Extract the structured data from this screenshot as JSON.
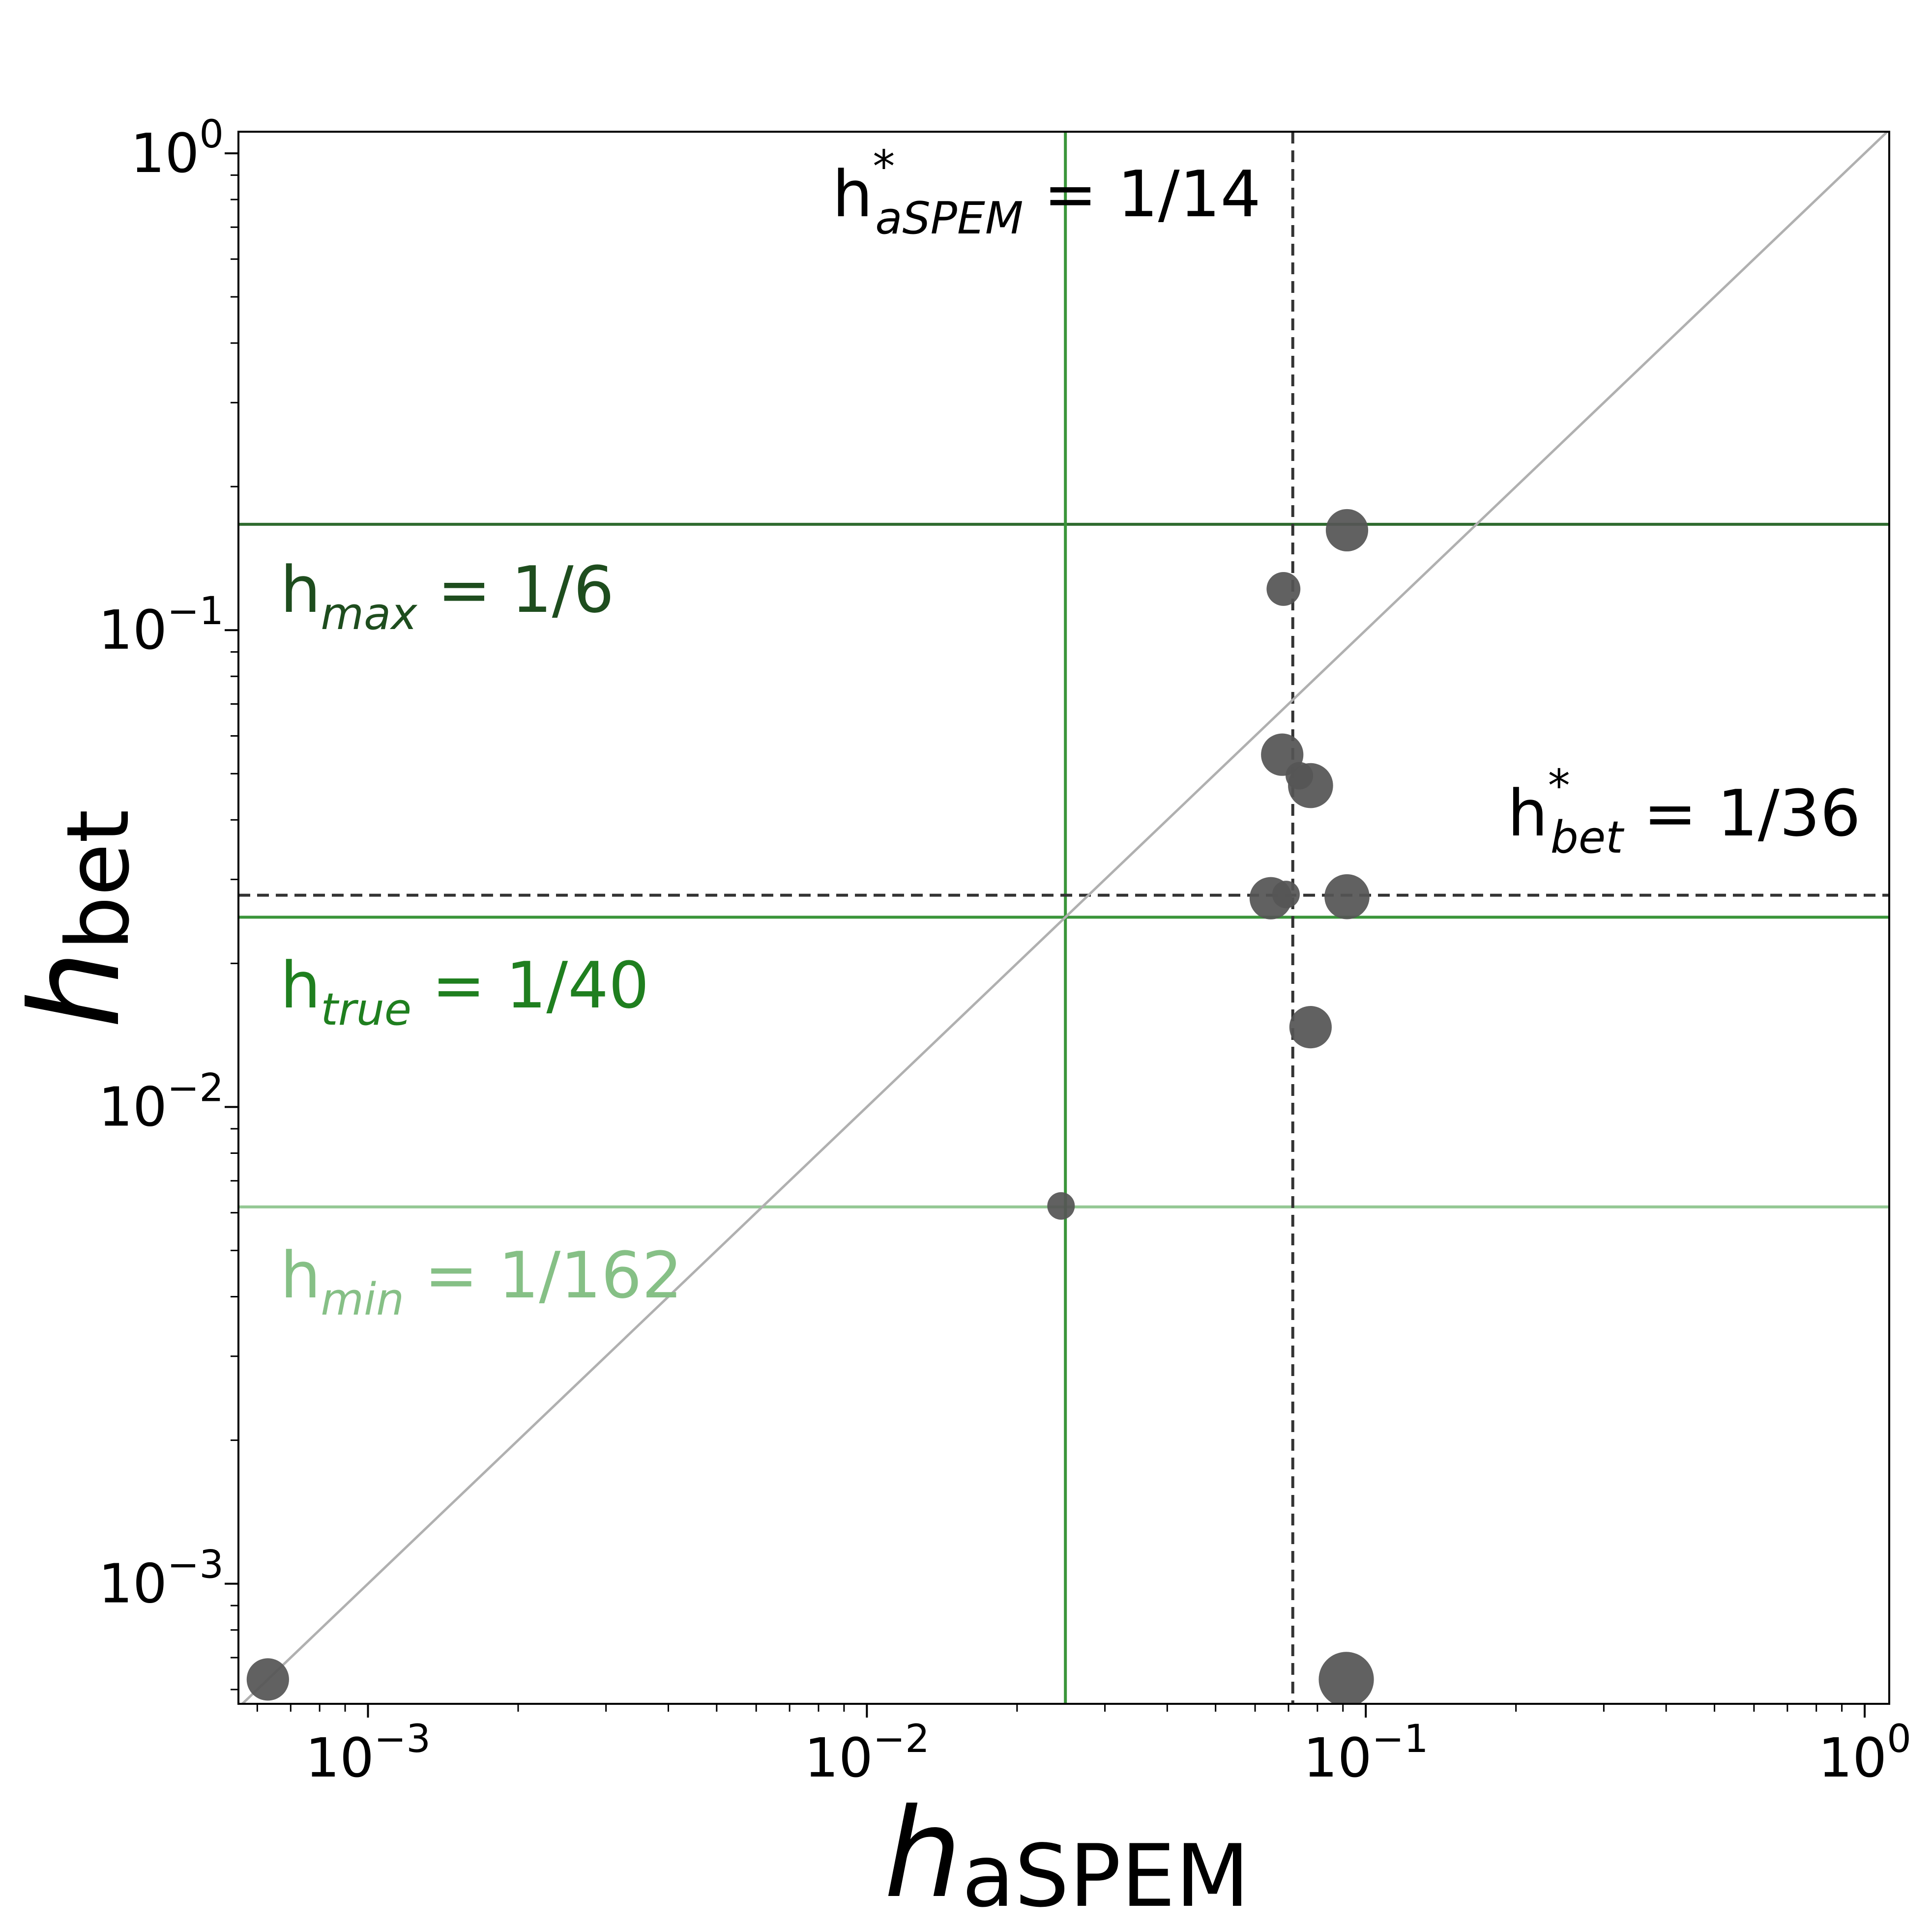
{
  "chart_data": {
    "type": "scatter",
    "xlabel": {
      "main": "h",
      "sub": "aSPEM"
    },
    "ylabel": {
      "main": "h",
      "sub": "bet"
    },
    "x_scale": "log",
    "y_scale": "log",
    "xlim": [
      0.00055,
      1.12
    ],
    "ylim": [
      0.00056,
      1.11
    ],
    "x_ticks": [
      {
        "value": 0.001,
        "base": "10",
        "exp": "−3"
      },
      {
        "value": 0.01,
        "base": "10",
        "exp": "−2"
      },
      {
        "value": 0.1,
        "base": "10",
        "exp": "−1"
      },
      {
        "value": 1,
        "base": "10",
        "exp": "0"
      }
    ],
    "y_ticks": [
      {
        "value": 0.001,
        "base": "10",
        "exp": "−3"
      },
      {
        "value": 0.01,
        "base": "10",
        "exp": "−2"
      },
      {
        "value": 0.1,
        "base": "10",
        "exp": "−1"
      },
      {
        "value": 1,
        "base": "10",
        "exp": "0"
      }
    ],
    "grid": false,
    "diagonal": {
      "color": "#b0b0b0"
    },
    "reference_lines": [
      {
        "orientation": "horizontal",
        "value": 0.1667,
        "color": "#2f6b2f",
        "style": "solid",
        "label": {
          "base": "h",
          "sub": "max",
          "rest": " = 1/6",
          "color": "#1e4d1e"
        }
      },
      {
        "orientation": "horizontal",
        "value": 0.025,
        "color": "#3a953a",
        "style": "solid",
        "label": {
          "base": "h",
          "sub": "true",
          "rest": " = 1/40",
          "color": "#1f7f1f"
        }
      },
      {
        "orientation": "horizontal",
        "value": 0.00617,
        "color": "#94c894",
        "style": "solid",
        "label": {
          "base": "h",
          "sub": "min",
          "rest": " = 1/162",
          "color": "#86c086"
        }
      },
      {
        "orientation": "vertical",
        "value": 0.025,
        "color": "#3a953a",
        "style": "solid",
        "label": null
      },
      {
        "orientation": "vertical",
        "value": 0.0714,
        "color": "#333333",
        "style": "dashed",
        "label": {
          "base": "h",
          "sup": "*",
          "sub": "aSPEM",
          "rest": " = 1/14",
          "color": "#000000"
        }
      },
      {
        "orientation": "horizontal",
        "value": 0.0278,
        "color": "#333333",
        "style": "dashed",
        "label": {
          "base": "h",
          "sup": "*",
          "sub": "bet",
          "rest": " = 1/36",
          "color": "#000000"
        }
      }
    ],
    "point_color": "#555555",
    "points": [
      {
        "x": 0.00063,
        "y": 0.00063,
        "size": 2
      },
      {
        "x": 0.0914,
        "y": 0.00063,
        "size": 3
      },
      {
        "x": 0.0245,
        "y": 0.0062,
        "size": 1
      },
      {
        "x": 0.0775,
        "y": 0.0147,
        "size": 2
      },
      {
        "x": 0.0645,
        "y": 0.0274,
        "size": 2
      },
      {
        "x": 0.0692,
        "y": 0.0279,
        "size": 1
      },
      {
        "x": 0.0917,
        "y": 0.0276,
        "size": 2.2
      },
      {
        "x": 0.068,
        "y": 0.0548,
        "size": 2
      },
      {
        "x": 0.0736,
        "y": 0.0495,
        "size": 1
      },
      {
        "x": 0.0775,
        "y": 0.0472,
        "size": 2.2
      },
      {
        "x": 0.0684,
        "y": 0.122,
        "size": 1.4
      },
      {
        "x": 0.0917,
        "y": 0.162,
        "size": 2
      }
    ]
  }
}
